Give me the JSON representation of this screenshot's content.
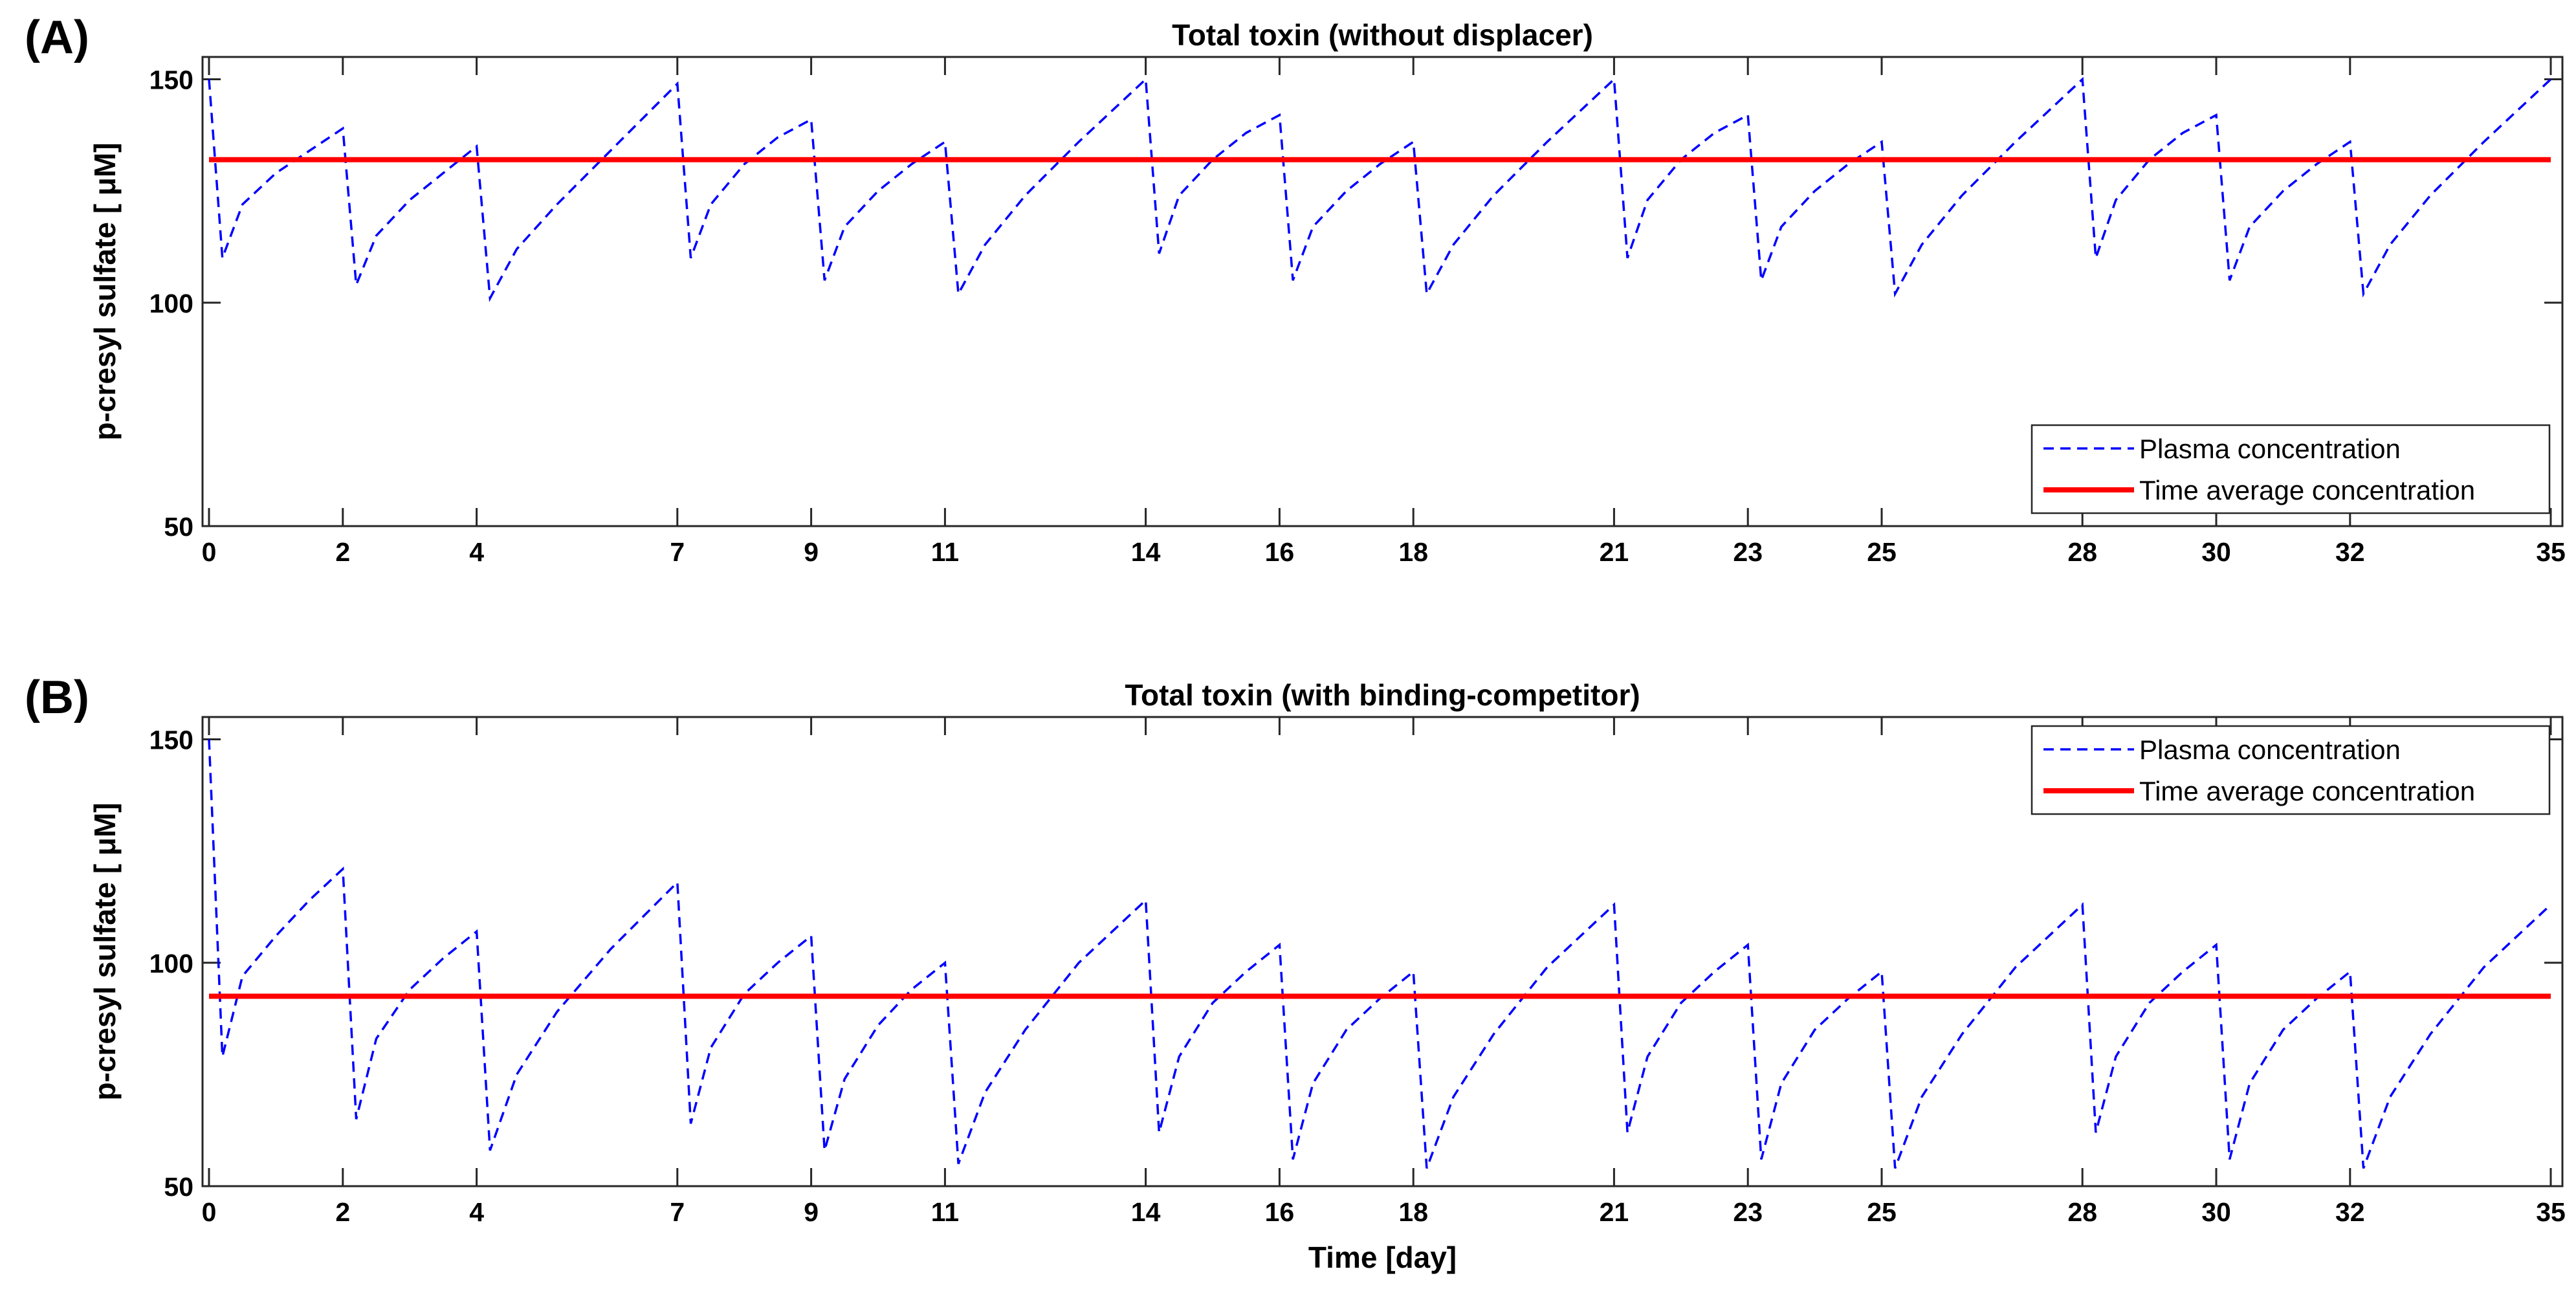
{
  "figure": {
    "xlabel": "Time [day]"
  },
  "chart_data": [
    {
      "panel": "(A)",
      "type": "line",
      "title": "Total toxin (without displacer)",
      "xlabel": "",
      "ylabel": "p-cresyl sulfate [ μM]",
      "xlim": [
        0,
        35
      ],
      "ylim": [
        50,
        155
      ],
      "xticks": [
        0,
        2,
        4,
        7,
        9,
        11,
        14,
        16,
        18,
        21,
        23,
        25,
        28,
        30,
        32,
        35
      ],
      "yticks": [
        50,
        100,
        150
      ],
      "grid": false,
      "legend_position": "bottom-right",
      "series": [
        {
          "name": "Plasma concentration",
          "style": "dashed",
          "color": "#0000ff",
          "points": [
            [
              0,
              150
            ],
            [
              0.2,
              110
            ],
            [
              0.5,
              122
            ],
            [
              1,
              129
            ],
            [
              1.5,
              134
            ],
            [
              2,
              139
            ],
            [
              2.2,
              104
            ],
            [
              2.5,
              115
            ],
            [
              3,
              123
            ],
            [
              3.5,
              129
            ],
            [
              4,
              135
            ],
            [
              4.2,
              101
            ],
            [
              4.6,
              112
            ],
            [
              5.2,
              122
            ],
            [
              6,
              134
            ],
            [
              7,
              149
            ],
            [
              7.2,
              110
            ],
            [
              7.5,
              122
            ],
            [
              8,
              131
            ],
            [
              8.5,
              137
            ],
            [
              9,
              141
            ],
            [
              9.2,
              105
            ],
            [
              9.5,
              117
            ],
            [
              10,
              125
            ],
            [
              10.5,
              131
            ],
            [
              11,
              136
            ],
            [
              11.2,
              102
            ],
            [
              11.6,
              113
            ],
            [
              12.2,
              124
            ],
            [
              13,
              136
            ],
            [
              14,
              150
            ],
            [
              14.2,
              111
            ],
            [
              14.5,
              124
            ],
            [
              15,
              132
            ],
            [
              15.5,
              138
            ],
            [
              16,
              142
            ],
            [
              16.2,
              105
            ],
            [
              16.5,
              117
            ],
            [
              17,
              125
            ],
            [
              17.5,
              131
            ],
            [
              18,
              136
            ],
            [
              18.2,
              102
            ],
            [
              18.6,
              113
            ],
            [
              19.2,
              124
            ],
            [
              20,
              136
            ],
            [
              21,
              150
            ],
            [
              21.2,
              110
            ],
            [
              21.5,
              123
            ],
            [
              22,
              132
            ],
            [
              22.5,
              138
            ],
            [
              23,
              142
            ],
            [
              23.2,
              105
            ],
            [
              23.5,
              117
            ],
            [
              24,
              125
            ],
            [
              24.5,
              131
            ],
            [
              25,
              136
            ],
            [
              25.2,
              102
            ],
            [
              25.6,
              113
            ],
            [
              26.2,
              124
            ],
            [
              27,
              136
            ],
            [
              28,
              150
            ],
            [
              28.2,
              110
            ],
            [
              28.5,
              123
            ],
            [
              29,
              132
            ],
            [
              29.5,
              138
            ],
            [
              30,
              142
            ],
            [
              30.2,
              105
            ],
            [
              30.5,
              117
            ],
            [
              31,
              125
            ],
            [
              31.5,
              131
            ],
            [
              32,
              136
            ],
            [
              32.2,
              102
            ],
            [
              32.6,
              113
            ],
            [
              33.2,
              124
            ],
            [
              34,
              136
            ],
            [
              35,
              150
            ]
          ]
        },
        {
          "name": "Time average concentration",
          "style": "solid",
          "color": "#ff0000",
          "points": [
            [
              0,
              132
            ],
            [
              35,
              132
            ]
          ]
        }
      ]
    },
    {
      "panel": "(B)",
      "type": "line",
      "title": "Total toxin (with binding-competitor)",
      "xlabel": "Time [day]",
      "ylabel": "p-cresyl sulfate [ μM]",
      "xlim": [
        0,
        35
      ],
      "ylim": [
        50,
        155
      ],
      "xticks": [
        0,
        2,
        4,
        7,
        9,
        11,
        14,
        16,
        18,
        21,
        23,
        25,
        28,
        30,
        32,
        35
      ],
      "yticks": [
        50,
        100,
        150
      ],
      "grid": false,
      "legend_position": "top-right",
      "series": [
        {
          "name": "Plasma concentration",
          "style": "dashed",
          "color": "#0000ff",
          "points": [
            [
              0,
              150
            ],
            [
              0.2,
              79
            ],
            [
              0.5,
              97
            ],
            [
              1,
              106
            ],
            [
              1.5,
              114
            ],
            [
              2,
              121
            ],
            [
              2.2,
              65
            ],
            [
              2.5,
              83
            ],
            [
              3,
              94
            ],
            [
              3.5,
              101
            ],
            [
              4,
              107
            ],
            [
              4.2,
              58
            ],
            [
              4.6,
              75
            ],
            [
              5.2,
              89
            ],
            [
              6,
              103
            ],
            [
              7,
              118
            ],
            [
              7.2,
              64
            ],
            [
              7.5,
              81
            ],
            [
              8,
              93
            ],
            [
              8.5,
              100
            ],
            [
              9,
              106
            ],
            [
              9.2,
              58
            ],
            [
              9.5,
              74
            ],
            [
              10,
              86
            ],
            [
              10.5,
              94
            ],
            [
              11,
              100
            ],
            [
              11.2,
              55
            ],
            [
              11.6,
              71
            ],
            [
              12.2,
              85
            ],
            [
              13,
              100
            ],
            [
              14,
              114
            ],
            [
              14.2,
              62
            ],
            [
              14.5,
              79
            ],
            [
              15,
              91
            ],
            [
              15.5,
              98
            ],
            [
              16,
              104
            ],
            [
              16.2,
              56
            ],
            [
              16.5,
              73
            ],
            [
              17,
              85
            ],
            [
              17.5,
              92
            ],
            [
              18,
              98
            ],
            [
              18.2,
              54
            ],
            [
              18.6,
              70
            ],
            [
              19.2,
              84
            ],
            [
              20,
              99
            ],
            [
              21,
              113
            ],
            [
              21.2,
              62
            ],
            [
              21.5,
              79
            ],
            [
              22,
              91
            ],
            [
              22.5,
              98
            ],
            [
              23,
              104
            ],
            [
              23.2,
              56
            ],
            [
              23.5,
              73
            ],
            [
              24,
              85
            ],
            [
              24.5,
              92
            ],
            [
              25,
              98
            ],
            [
              25.2,
              54
            ],
            [
              25.6,
              70
            ],
            [
              26.2,
              84
            ],
            [
              27,
              99
            ],
            [
              28,
              113
            ],
            [
              28.2,
              62
            ],
            [
              28.5,
              79
            ],
            [
              29,
              91
            ],
            [
              29.5,
              98
            ],
            [
              30,
              104
            ],
            [
              30.2,
              56
            ],
            [
              30.5,
              73
            ],
            [
              31,
              85
            ],
            [
              31.5,
              92
            ],
            [
              32,
              98
            ],
            [
              32.2,
              54
            ],
            [
              32.6,
              70
            ],
            [
              33.2,
              84
            ],
            [
              34,
              99
            ],
            [
              35,
              113
            ]
          ]
        },
        {
          "name": "Time average concentration",
          "style": "solid",
          "color": "#ff0000",
          "points": [
            [
              0,
              92.5
            ],
            [
              35,
              92.5
            ]
          ]
        }
      ]
    }
  ]
}
